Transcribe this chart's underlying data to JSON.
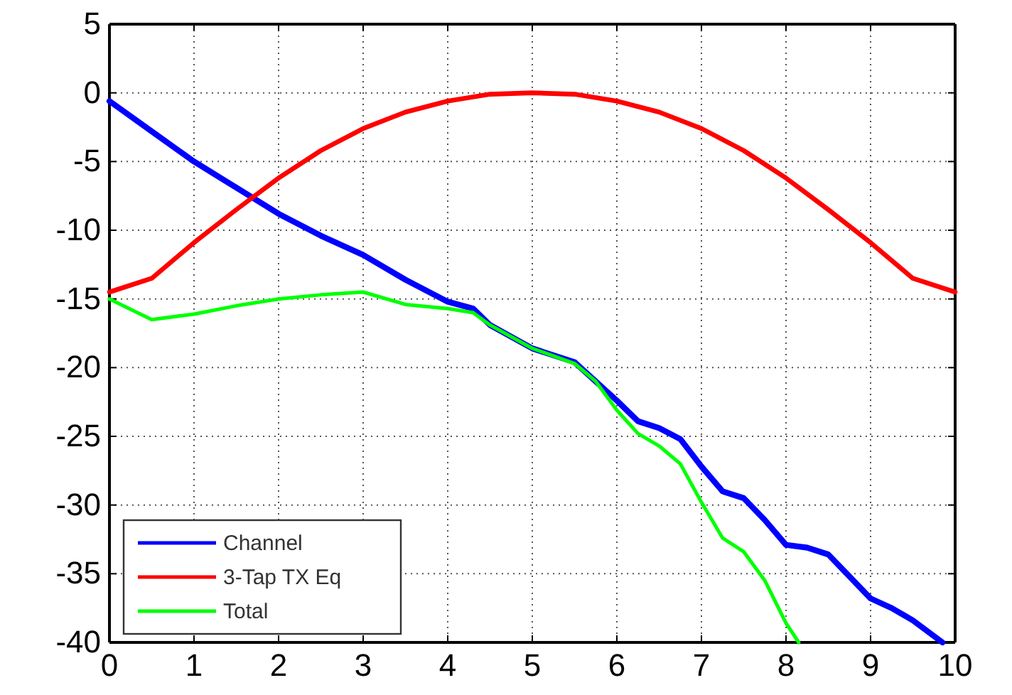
{
  "chart_data": {
    "type": "line",
    "xlim": [
      0,
      10
    ],
    "ylim": [
      -40,
      5
    ],
    "xticks": [
      0,
      1,
      2,
      3,
      4,
      5,
      6,
      7,
      8,
      9,
      10
    ],
    "yticks": [
      -40,
      -35,
      -30,
      -25,
      -20,
      -15,
      -10,
      -5,
      0,
      5
    ],
    "grid": true,
    "legend": "bottom left",
    "line_style": "solid",
    "marker": "none",
    "series": [
      {
        "name": "Channel",
        "color": "#0000ff",
        "x": [
          0,
          0.5,
          1,
          1.5,
          2,
          2.5,
          3,
          3.5,
          4,
          4.3,
          4.5,
          5,
          5.5,
          6,
          6.25,
          6.5,
          6.75,
          7,
          7.25,
          7.5,
          7.75,
          8,
          8.25,
          8.5,
          8.75,
          9,
          9.25,
          9.5,
          9.85
        ],
        "values": [
          -0.6,
          -2.8,
          -5,
          -6.9,
          -8.8,
          -10.4,
          -11.8,
          -13.6,
          -15.2,
          -15.7,
          -16.9,
          -18.6,
          -19.6,
          -22.4,
          -23.9,
          -24.4,
          -25.2,
          -27.2,
          -29,
          -29.5,
          -31.1,
          -32.9,
          -33.1,
          -33.6,
          -35.2,
          -36.8,
          -37.5,
          -38.4,
          -40
        ]
      },
      {
        "name": "3-Tap TX Eq",
        "color": "#ff0000",
        "x": [
          0,
          0.5,
          1,
          1.5,
          2,
          2.5,
          3,
          3.5,
          4,
          4.5,
          5,
          5.5,
          6,
          6.5,
          7,
          7.5,
          8,
          8.5,
          9,
          9.5,
          10
        ],
        "values": [
          -14.5,
          -13.5,
          -10.9,
          -8.5,
          -6.2,
          -4.2,
          -2.6,
          -1.4,
          -0.6,
          -0.1,
          0,
          -0.1,
          -0.6,
          -1.4,
          -2.6,
          -4.2,
          -6.2,
          -8.5,
          -10.9,
          -13.5,
          -14.5
        ]
      },
      {
        "name": "Total",
        "color": "#00ff00",
        "x": [
          0,
          0.5,
          1,
          1.5,
          2,
          2.5,
          3,
          3.5,
          4,
          4.3,
          4.5,
          5,
          5.5,
          5.75,
          6,
          6.25,
          6.5,
          6.75,
          7,
          7.25,
          7.5,
          7.75,
          8,
          8.15
        ],
        "values": [
          -15,
          -16.5,
          -16.1,
          -15.5,
          -15,
          -14.7,
          -14.5,
          -15.4,
          -15.7,
          -16,
          -16.9,
          -18.6,
          -19.7,
          -21,
          -23.1,
          -24.8,
          -25.7,
          -27,
          -29.8,
          -32.4,
          -33.4,
          -35.5,
          -38.6,
          -40
        ]
      }
    ]
  }
}
